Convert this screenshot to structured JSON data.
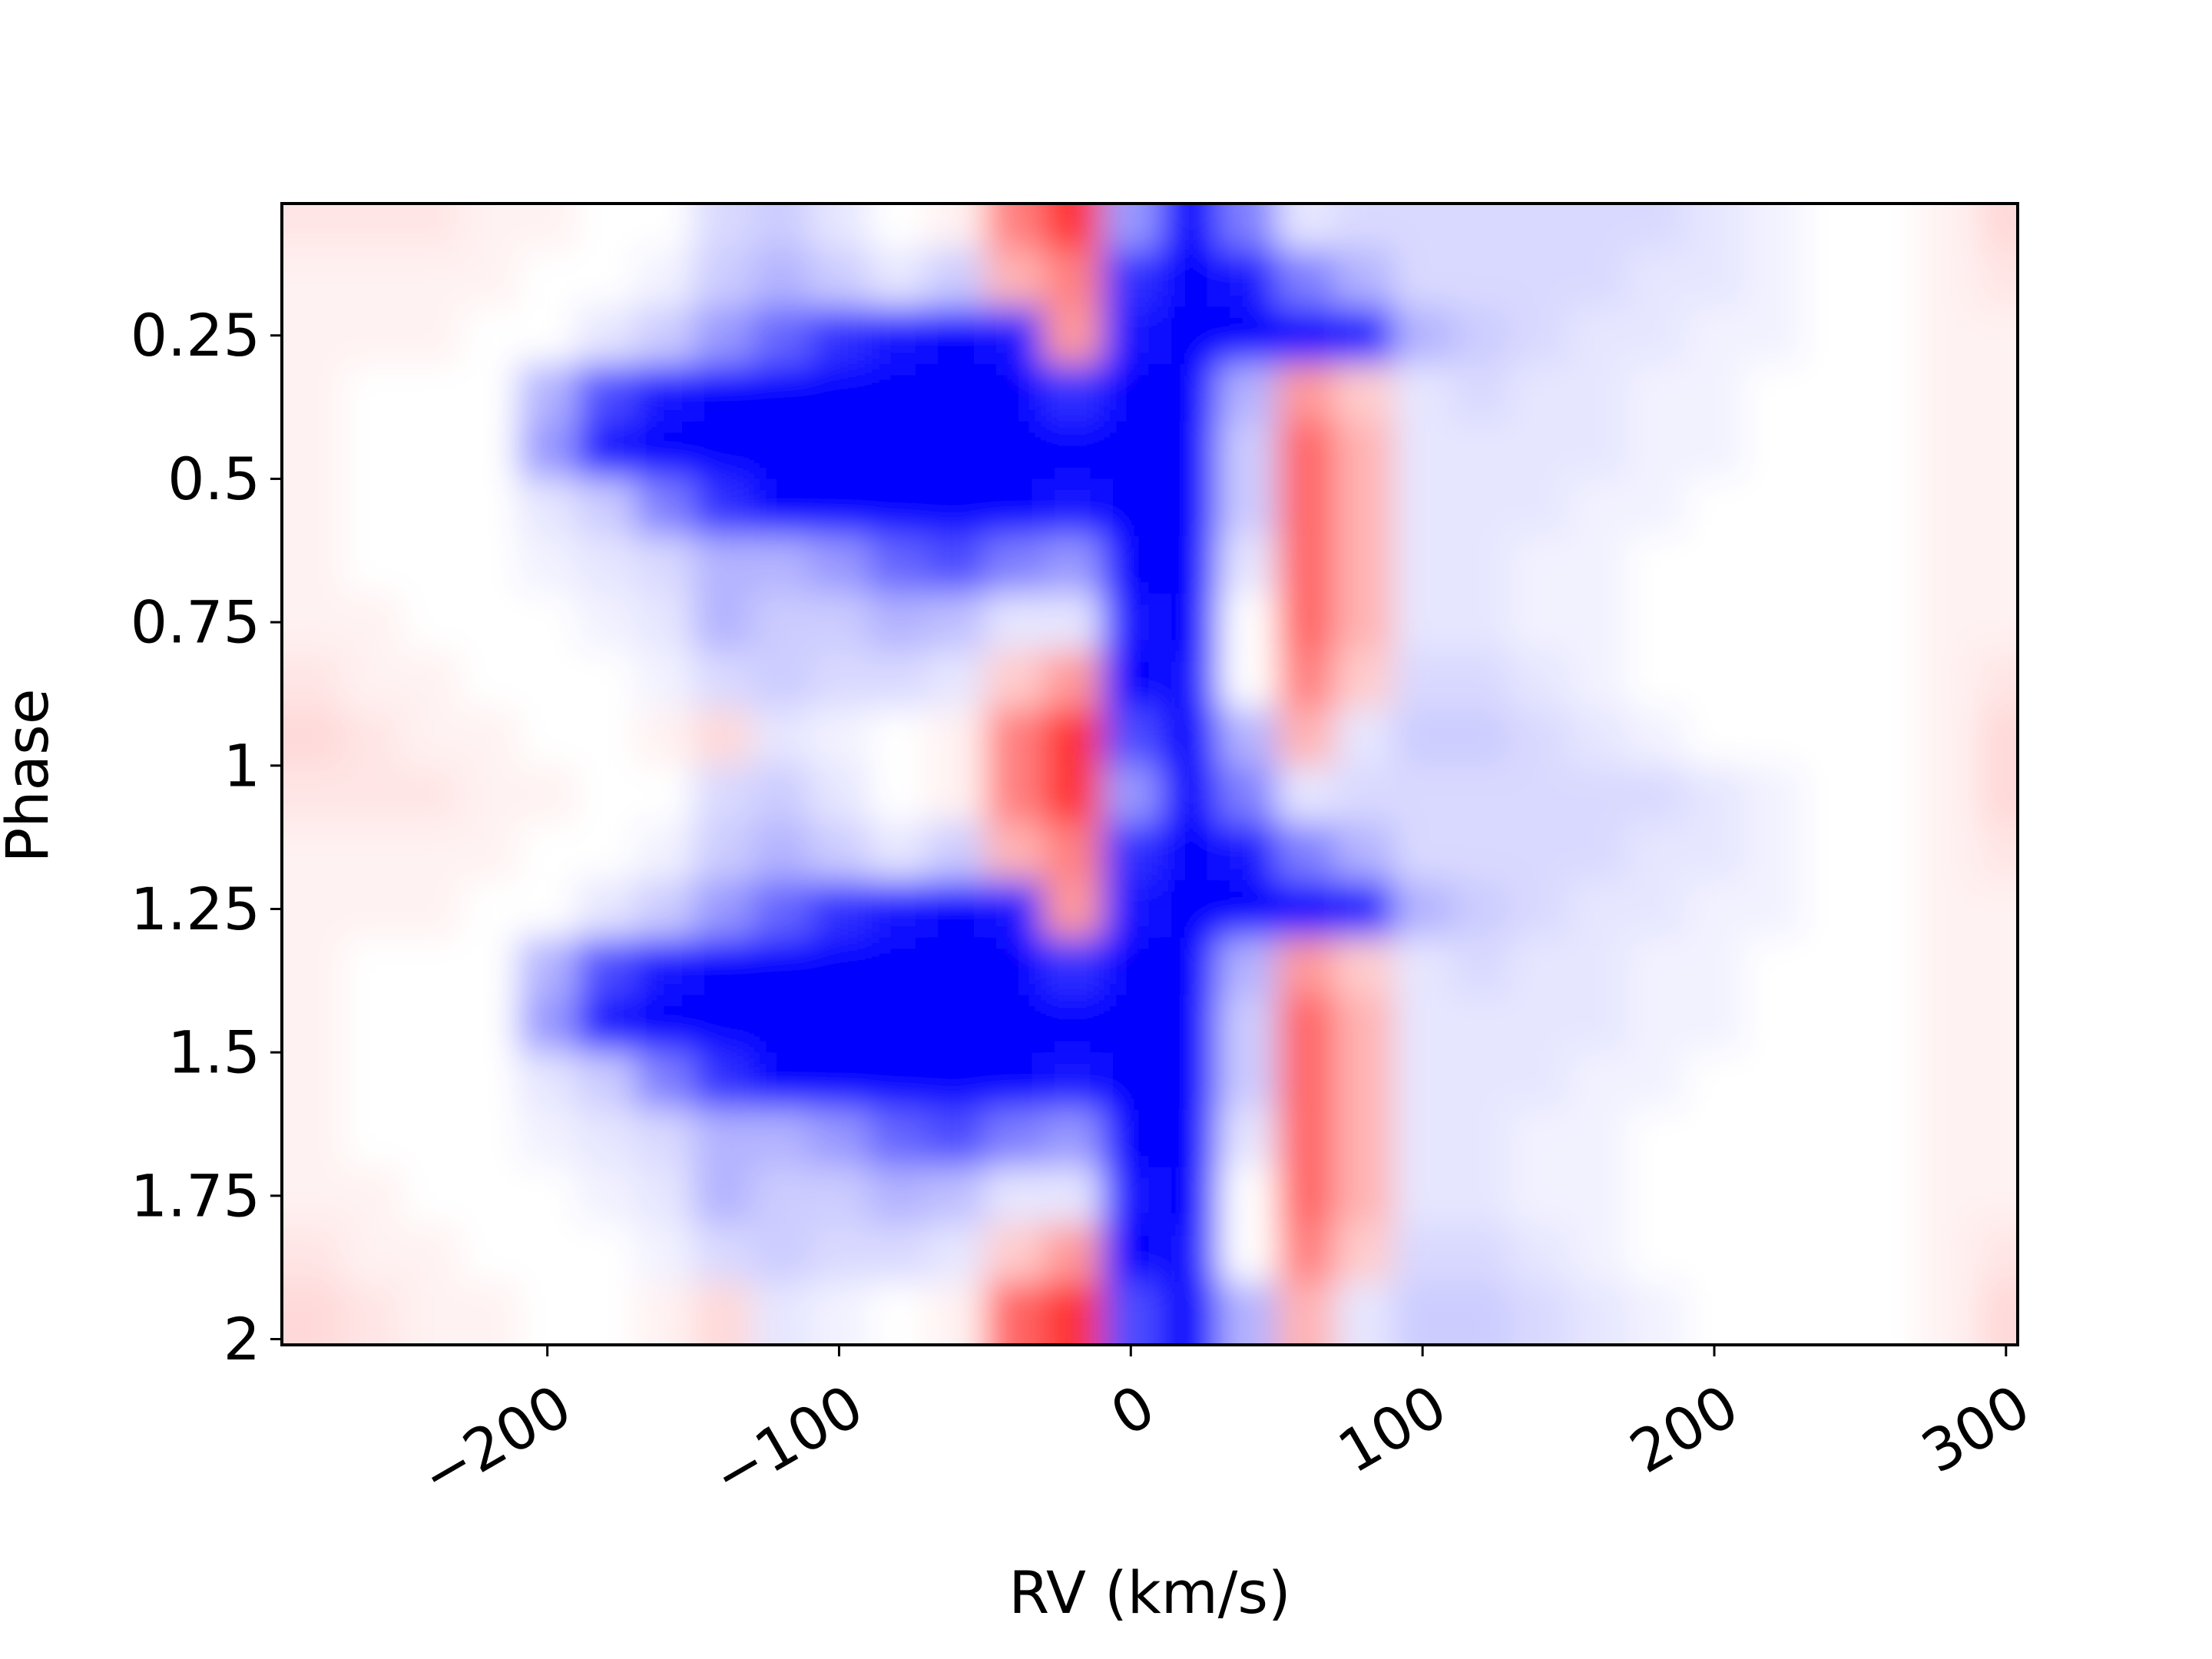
{
  "chart_data": {
    "type": "heatmap",
    "xlabel": "RV (km/s)",
    "ylabel": "Phase",
    "xlim": [
      -291,
      304
    ],
    "ylim": [
      0.02,
      2.01
    ],
    "y_inverted": true,
    "xticks": [
      {
        "value": -200,
        "label": "−200"
      },
      {
        "value": -100,
        "label": "−100"
      },
      0,
      100,
      200,
      300
    ],
    "yticks": [
      0.25,
      0.5,
      0.75,
      1,
      1.25,
      1.5,
      1.75,
      2
    ],
    "colormap": "bwr",
    "zlim": [
      -1,
      1
    ],
    "x": [
      -280,
      -260,
      -240,
      -220,
      -200,
      -180,
      -160,
      -140,
      -120,
      -100,
      -80,
      -60,
      -40,
      -20,
      0,
      20,
      40,
      60,
      80,
      100,
      120,
      140,
      160,
      180,
      200,
      220,
      240,
      260,
      280,
      300
    ],
    "y": [
      0.05,
      0.15,
      0.25,
      0.35,
      0.45,
      0.55,
      0.65,
      0.75,
      0.85,
      0.95,
      1.05,
      1.15,
      1.25,
      1.35,
      1.45,
      1.55,
      1.65,
      1.75,
      1.85,
      1.95
    ],
    "z": [
      [
        0.1,
        0.1,
        0.1,
        0.05,
        0.05,
        0,
        0,
        -0.15,
        -0.2,
        -0.1,
        0,
        0.05,
        0.5,
        0.8,
        -0.4,
        -1,
        -0.5,
        -0.1,
        -0.15,
        -0.15,
        -0.15,
        -0.15,
        -0.15,
        -0.15,
        -0.1,
        -0.05,
        0,
        0,
        0.05,
        0.15
      ],
      [
        0.05,
        0.05,
        0.05,
        0.05,
        0,
        0,
        -0.05,
        -0.2,
        -0.3,
        -0.2,
        -0.1,
        -0.2,
        0.3,
        0.5,
        -0.8,
        -1,
        -0.9,
        -0.5,
        -0.3,
        -0.15,
        -0.15,
        -0.15,
        -0.15,
        -0.1,
        -0.1,
        -0.05,
        0,
        0,
        0.05,
        0.1
      ],
      [
        0.05,
        0.05,
        0.05,
        0,
        0,
        -0.1,
        -0.2,
        -0.4,
        -0.6,
        -0.8,
        -0.9,
        -1,
        -0.9,
        0.4,
        -0.9,
        -1,
        -1,
        -1,
        -0.9,
        -0.3,
        -0.2,
        -0.15,
        -0.1,
        -0.1,
        -0.05,
        -0.05,
        0,
        0,
        0.05,
        0.05
      ],
      [
        0.05,
        0,
        0,
        0,
        -0.3,
        -0.7,
        -0.9,
        -1,
        -1,
        -1,
        -1,
        -1,
        -1,
        -0.8,
        -1,
        -1,
        -0.3,
        0.4,
        0.2,
        -0.1,
        -0.15,
        -0.1,
        -0.1,
        -0.05,
        -0.05,
        0,
        0,
        0,
        0.05,
        0.05
      ],
      [
        0.05,
        0,
        0,
        0,
        -0.4,
        -0.9,
        -1,
        -1,
        -1,
        -1,
        -1,
        -1,
        -1,
        -1,
        -1,
        -1,
        -0.2,
        0.6,
        0.3,
        -0.1,
        -0.1,
        -0.1,
        -0.1,
        -0.05,
        -0.05,
        0,
        0,
        0,
        0.05,
        0.05
      ],
      [
        0.05,
        0,
        0,
        0,
        -0.1,
        -0.2,
        -0.5,
        -0.8,
        -1,
        -1,
        -1,
        -1,
        -1,
        -0.9,
        -1,
        -1,
        -0.2,
        0.6,
        0.3,
        -0.1,
        -0.1,
        -0.1,
        -0.05,
        -0.05,
        0,
        0,
        0,
        0,
        0.05,
        0.05
      ],
      [
        0.05,
        0,
        0,
        0,
        -0.05,
        -0.1,
        -0.15,
        -0.3,
        -0.3,
        -0.4,
        -0.6,
        -0.7,
        -0.5,
        -0.4,
        -1,
        -1,
        -0.1,
        0.6,
        0.3,
        -0.1,
        -0.1,
        -0.05,
        -0.05,
        0,
        0,
        0,
        0,
        0,
        0.05,
        0.05
      ],
      [
        0.05,
        0.05,
        0,
        0,
        0,
        -0.05,
        -0.1,
        -0.3,
        -0.2,
        -0.2,
        -0.3,
        -0.25,
        -0.1,
        -0.1,
        -0.9,
        -1,
        0,
        0.6,
        0.3,
        -0.1,
        -0.1,
        -0.05,
        -0.05,
        0,
        0,
        0,
        0,
        0,
        0.05,
        0.05
      ],
      [
        0.1,
        0.05,
        0.05,
        0,
        0,
        0,
        -0.05,
        -0.15,
        -0.2,
        -0.15,
        -0.15,
        -0.1,
        0.2,
        0.4,
        -1,
        -0.9,
        0,
        0.5,
        0.2,
        -0.15,
        -0.15,
        -0.1,
        -0.05,
        0,
        0,
        0,
        0,
        0,
        0.05,
        0.1
      ],
      [
        0.15,
        0.1,
        0.05,
        0.05,
        0,
        0,
        0.05,
        0.15,
        -0.1,
        -0.05,
        0,
        0.05,
        0.5,
        0.8,
        -0.7,
        -1,
        -0.3,
        0.3,
        -0.1,
        -0.2,
        -0.2,
        -0.15,
        -0.1,
        -0.05,
        0,
        0,
        0,
        0,
        0.05,
        0.15
      ],
      [
        0.1,
        0.1,
        0.1,
        0.05,
        0.05,
        0,
        0,
        -0.15,
        -0.2,
        -0.1,
        0,
        0.05,
        0.5,
        0.8,
        -0.4,
        -1,
        -0.5,
        -0.1,
        -0.15,
        -0.15,
        -0.15,
        -0.15,
        -0.15,
        -0.15,
        -0.1,
        -0.05,
        0,
        0,
        0.05,
        0.15
      ],
      [
        0.05,
        0.05,
        0.05,
        0.05,
        0,
        0,
        -0.05,
        -0.2,
        -0.3,
        -0.2,
        -0.1,
        -0.2,
        0.3,
        0.5,
        -0.8,
        -1,
        -0.9,
        -0.5,
        -0.3,
        -0.15,
        -0.15,
        -0.15,
        -0.15,
        -0.1,
        -0.1,
        -0.05,
        0,
        0,
        0.05,
        0.1
      ],
      [
        0.05,
        0.05,
        0.05,
        0,
        0,
        -0.1,
        -0.2,
        -0.4,
        -0.6,
        -0.8,
        -0.9,
        -1,
        -0.9,
        0.4,
        -0.9,
        -1,
        -1,
        -1,
        -0.9,
        -0.3,
        -0.2,
        -0.15,
        -0.1,
        -0.1,
        -0.05,
        -0.05,
        0,
        0,
        0.05,
        0.05
      ],
      [
        0.05,
        0,
        0,
        0,
        -0.3,
        -0.7,
        -0.9,
        -1,
        -1,
        -1,
        -1,
        -1,
        -1,
        -0.8,
        -1,
        -1,
        -0.3,
        0.4,
        0.2,
        -0.1,
        -0.15,
        -0.1,
        -0.1,
        -0.05,
        -0.05,
        0,
        0,
        0,
        0.05,
        0.05
      ],
      [
        0.05,
        0,
        0,
        0,
        -0.4,
        -0.9,
        -1,
        -1,
        -1,
        -1,
        -1,
        -1,
        -1,
        -1,
        -1,
        -1,
        -0.2,
        0.6,
        0.3,
        -0.1,
        -0.1,
        -0.1,
        -0.1,
        -0.05,
        -0.05,
        0,
        0,
        0,
        0.05,
        0.05
      ],
      [
        0.05,
        0,
        0,
        0,
        -0.1,
        -0.2,
        -0.5,
        -0.8,
        -1,
        -1,
        -1,
        -1,
        -1,
        -0.9,
        -1,
        -1,
        -0.2,
        0.6,
        0.3,
        -0.1,
        -0.1,
        -0.1,
        -0.05,
        -0.05,
        0,
        0,
        0,
        0,
        0.05,
        0.05
      ],
      [
        0.05,
        0,
        0,
        0,
        -0.05,
        -0.1,
        -0.15,
        -0.3,
        -0.3,
        -0.4,
        -0.6,
        -0.7,
        -0.5,
        -0.4,
        -1,
        -1,
        -0.1,
        0.6,
        0.3,
        -0.1,
        -0.1,
        -0.05,
        -0.05,
        0,
        0,
        0,
        0,
        0,
        0.05,
        0.05
      ],
      [
        0.05,
        0.05,
        0,
        0,
        0,
        -0.05,
        -0.1,
        -0.3,
        -0.2,
        -0.2,
        -0.3,
        -0.25,
        -0.1,
        -0.1,
        -0.9,
        -1,
        0,
        0.6,
        0.3,
        -0.1,
        -0.1,
        -0.05,
        -0.05,
        0,
        0,
        0,
        0,
        0,
        0.05,
        0.05
      ],
      [
        0.1,
        0.05,
        0.05,
        0,
        0,
        0,
        -0.05,
        -0.15,
        -0.2,
        -0.15,
        -0.15,
        -0.1,
        0.2,
        0.4,
        -1,
        -0.9,
        0,
        0.5,
        0.2,
        -0.15,
        -0.15,
        -0.1,
        -0.05,
        0,
        0,
        0,
        0,
        0,
        0.05,
        0.1
      ],
      [
        0.15,
        0.1,
        0.05,
        0.05,
        0,
        0,
        0.05,
        0.15,
        -0.1,
        -0.05,
        0,
        0.05,
        0.6,
        0.8,
        -0.7,
        -1,
        -0.3,
        0.3,
        -0.1,
        -0.2,
        -0.2,
        -0.15,
        -0.1,
        -0.05,
        0,
        0,
        0,
        0,
        0.05,
        0.15
      ]
    ]
  }
}
